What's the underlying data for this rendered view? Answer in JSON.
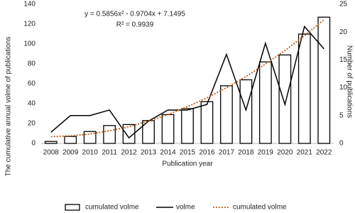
{
  "chart_data": {
    "type": "combo",
    "annotations": [
      "y = 0.5856x² - 0.9704x + 7.1495",
      "R² = 0.9939"
    ],
    "x_label": "Publication year",
    "y_label": "The cumulative annual volme of publications",
    "y2_label": "Number of publications",
    "categories": [
      "2008",
      "2009",
      "2010",
      "2011",
      "2012",
      "2013",
      "2014",
      "2015",
      "2016",
      "2017",
      "2018",
      "2019",
      "2020",
      "2021",
      "2022"
    ],
    "series": [
      {
        "name": "cumulated volme",
        "type": "bar",
        "color": "#000000",
        "values": [
          2,
          7,
          12,
          18,
          19,
          23,
          29,
          35,
          42,
          58,
          64,
          82,
          89,
          110,
          127
        ]
      },
      {
        "name": "volme",
        "type": "line",
        "axis": "y2",
        "color": "#000000",
        "values": [
          2,
          5,
          5,
          6,
          1,
          4,
          6,
          6,
          7,
          16,
          6,
          18,
          7,
          21,
          17
        ]
      },
      {
        "name": "cumulated volme",
        "type": "trendline",
        "color": "#c55a11",
        "values": [
          6.8,
          7.6,
          9.5,
          12.7,
          16.9,
          22.4,
          29.1,
          36.9,
          45.9,
          56.0,
          67.3,
          79.8,
          93.5,
          108.4,
          124.4
        ]
      }
    ],
    "ylim": [
      0,
      140
    ],
    "yticks": [
      0,
      20,
      40,
      60,
      80,
      100,
      120,
      140
    ],
    "y2lim": [
      0,
      25
    ],
    "y2ticks": [
      0,
      5,
      10,
      15,
      20,
      25
    ],
    "legend": "bottom"
  }
}
